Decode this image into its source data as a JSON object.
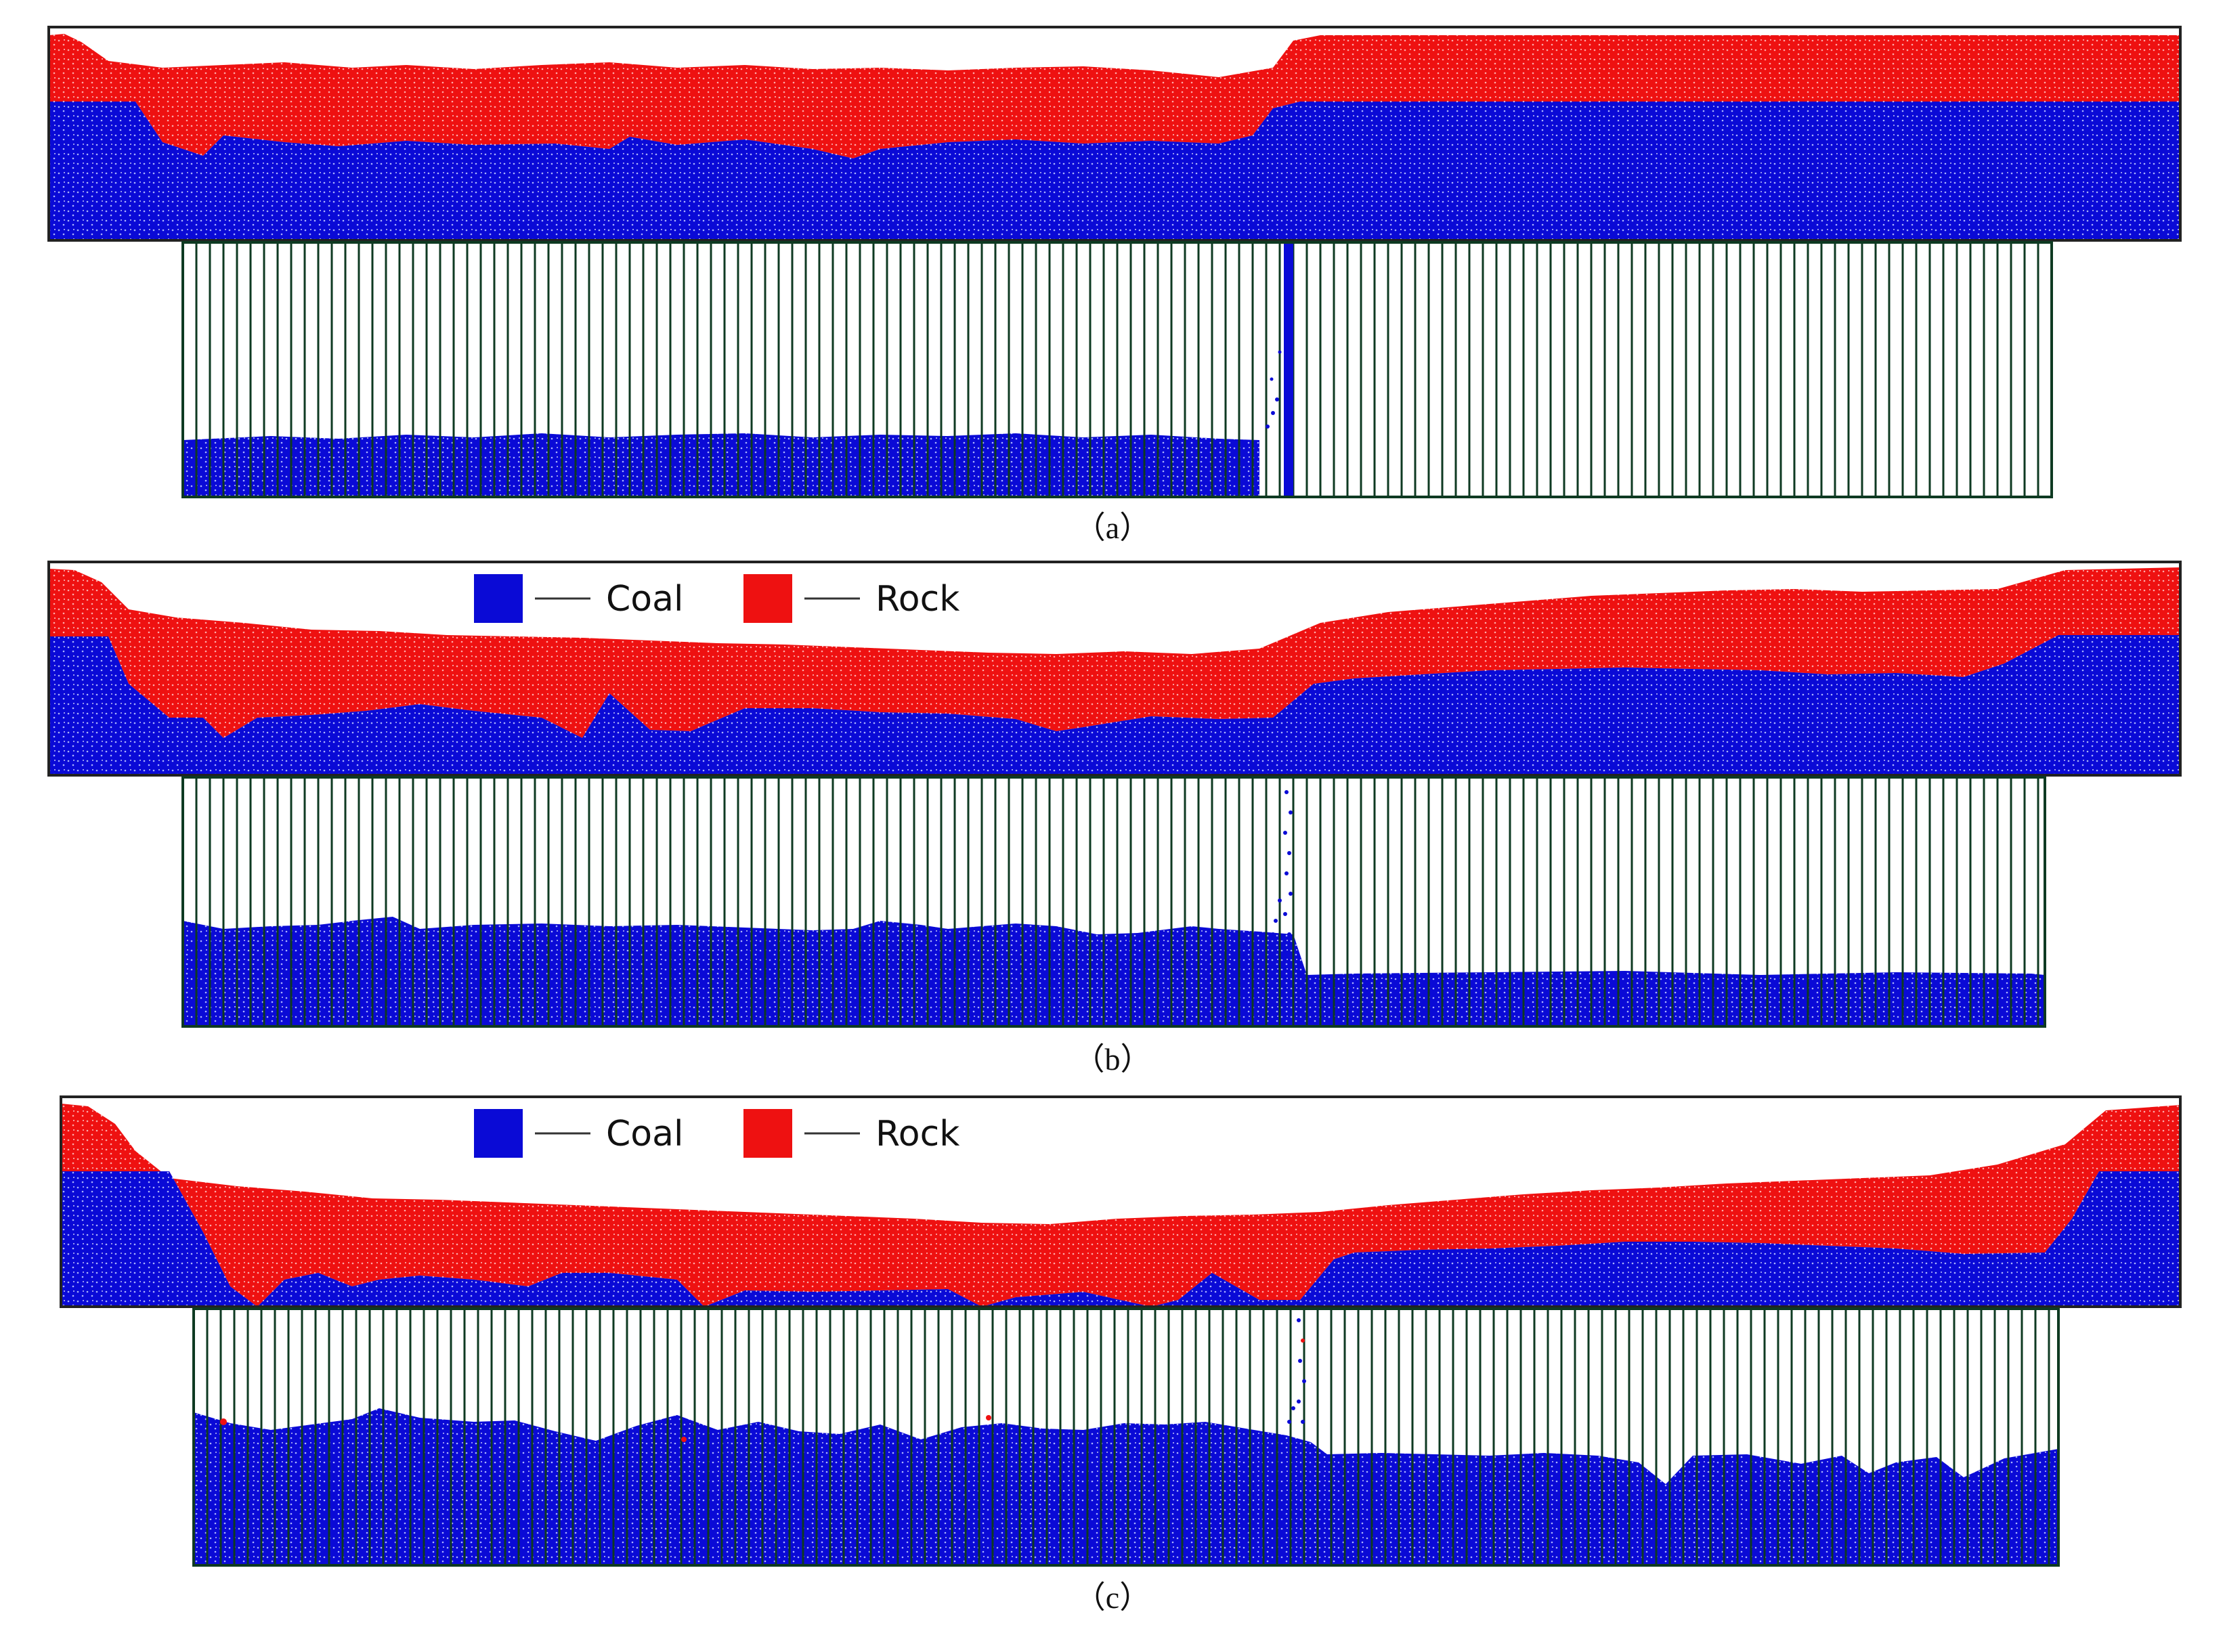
{
  "colors": {
    "coal": "#0a0ad6",
    "rock": "#ee1111",
    "frame": "#222222",
    "window": "#0e3a22"
  },
  "legend": {
    "coal_label": "Coal",
    "rock_label": "Rock"
  },
  "panels": [
    {
      "id": "a",
      "caption": "（a）",
      "has_legend": false
    },
    {
      "id": "b",
      "caption": "（b）",
      "has_legend": true
    },
    {
      "id": "c",
      "caption": "（c）",
      "has_legend": true
    }
  ]
}
